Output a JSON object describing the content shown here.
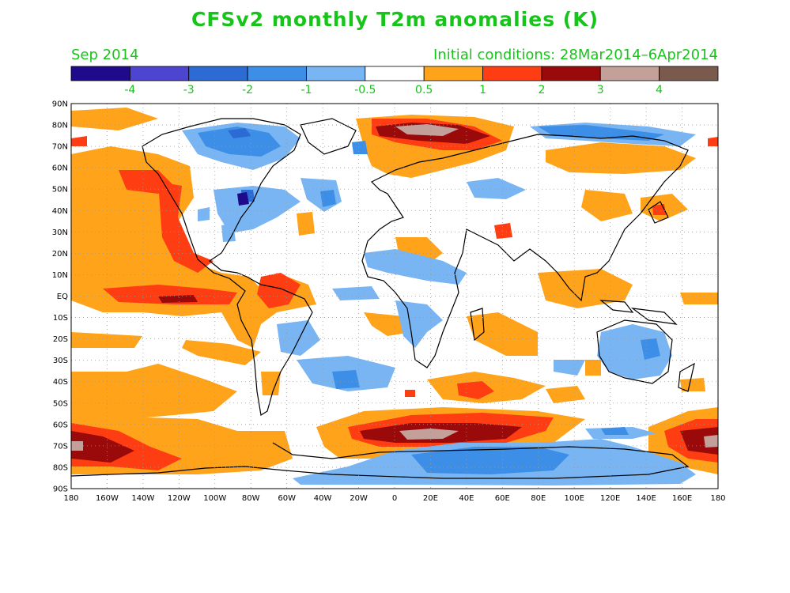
{
  "title": "CFSv2 monthly T2m anomalies (K)",
  "valid_month": "Sep 2014",
  "initial_conditions": "Initial conditions: 28Mar2014–6Apr2014",
  "colors": {
    "text_green": "#17c41a",
    "ocean_land_bg": "#ffffff",
    "coast": "#000000",
    "grid": "#9a9a9a"
  },
  "legend": {
    "colors": [
      "#1f0a8c",
      "#4d44cf",
      "#2c6ad4",
      "#3c8ee6",
      "#78b5f2",
      "#ffffff",
      "#ffa31a",
      "#ff3d12",
      "#9b0a0a",
      "#c4a09a",
      "#7a5a4c"
    ],
    "labels": [
      "-4",
      "-3",
      "-2",
      "-1",
      "-0.5",
      "0.5",
      "1",
      "2",
      "3",
      "4"
    ]
  },
  "axes": {
    "lat_labels": [
      "90N",
      "80N",
      "70N",
      "60N",
      "50N",
      "40N",
      "30N",
      "20N",
      "10N",
      "EQ",
      "10S",
      "20S",
      "30S",
      "40S",
      "50S",
      "60S",
      "70S",
      "80S",
      "90S"
    ],
    "lon_labels": [
      "180",
      "160W",
      "140W",
      "120W",
      "100W",
      "80W",
      "60W",
      "40W",
      "20W",
      "0",
      "20E",
      "40E",
      "60E",
      "80E",
      "100E",
      "120E",
      "140E",
      "160E",
      "180"
    ]
  }
}
